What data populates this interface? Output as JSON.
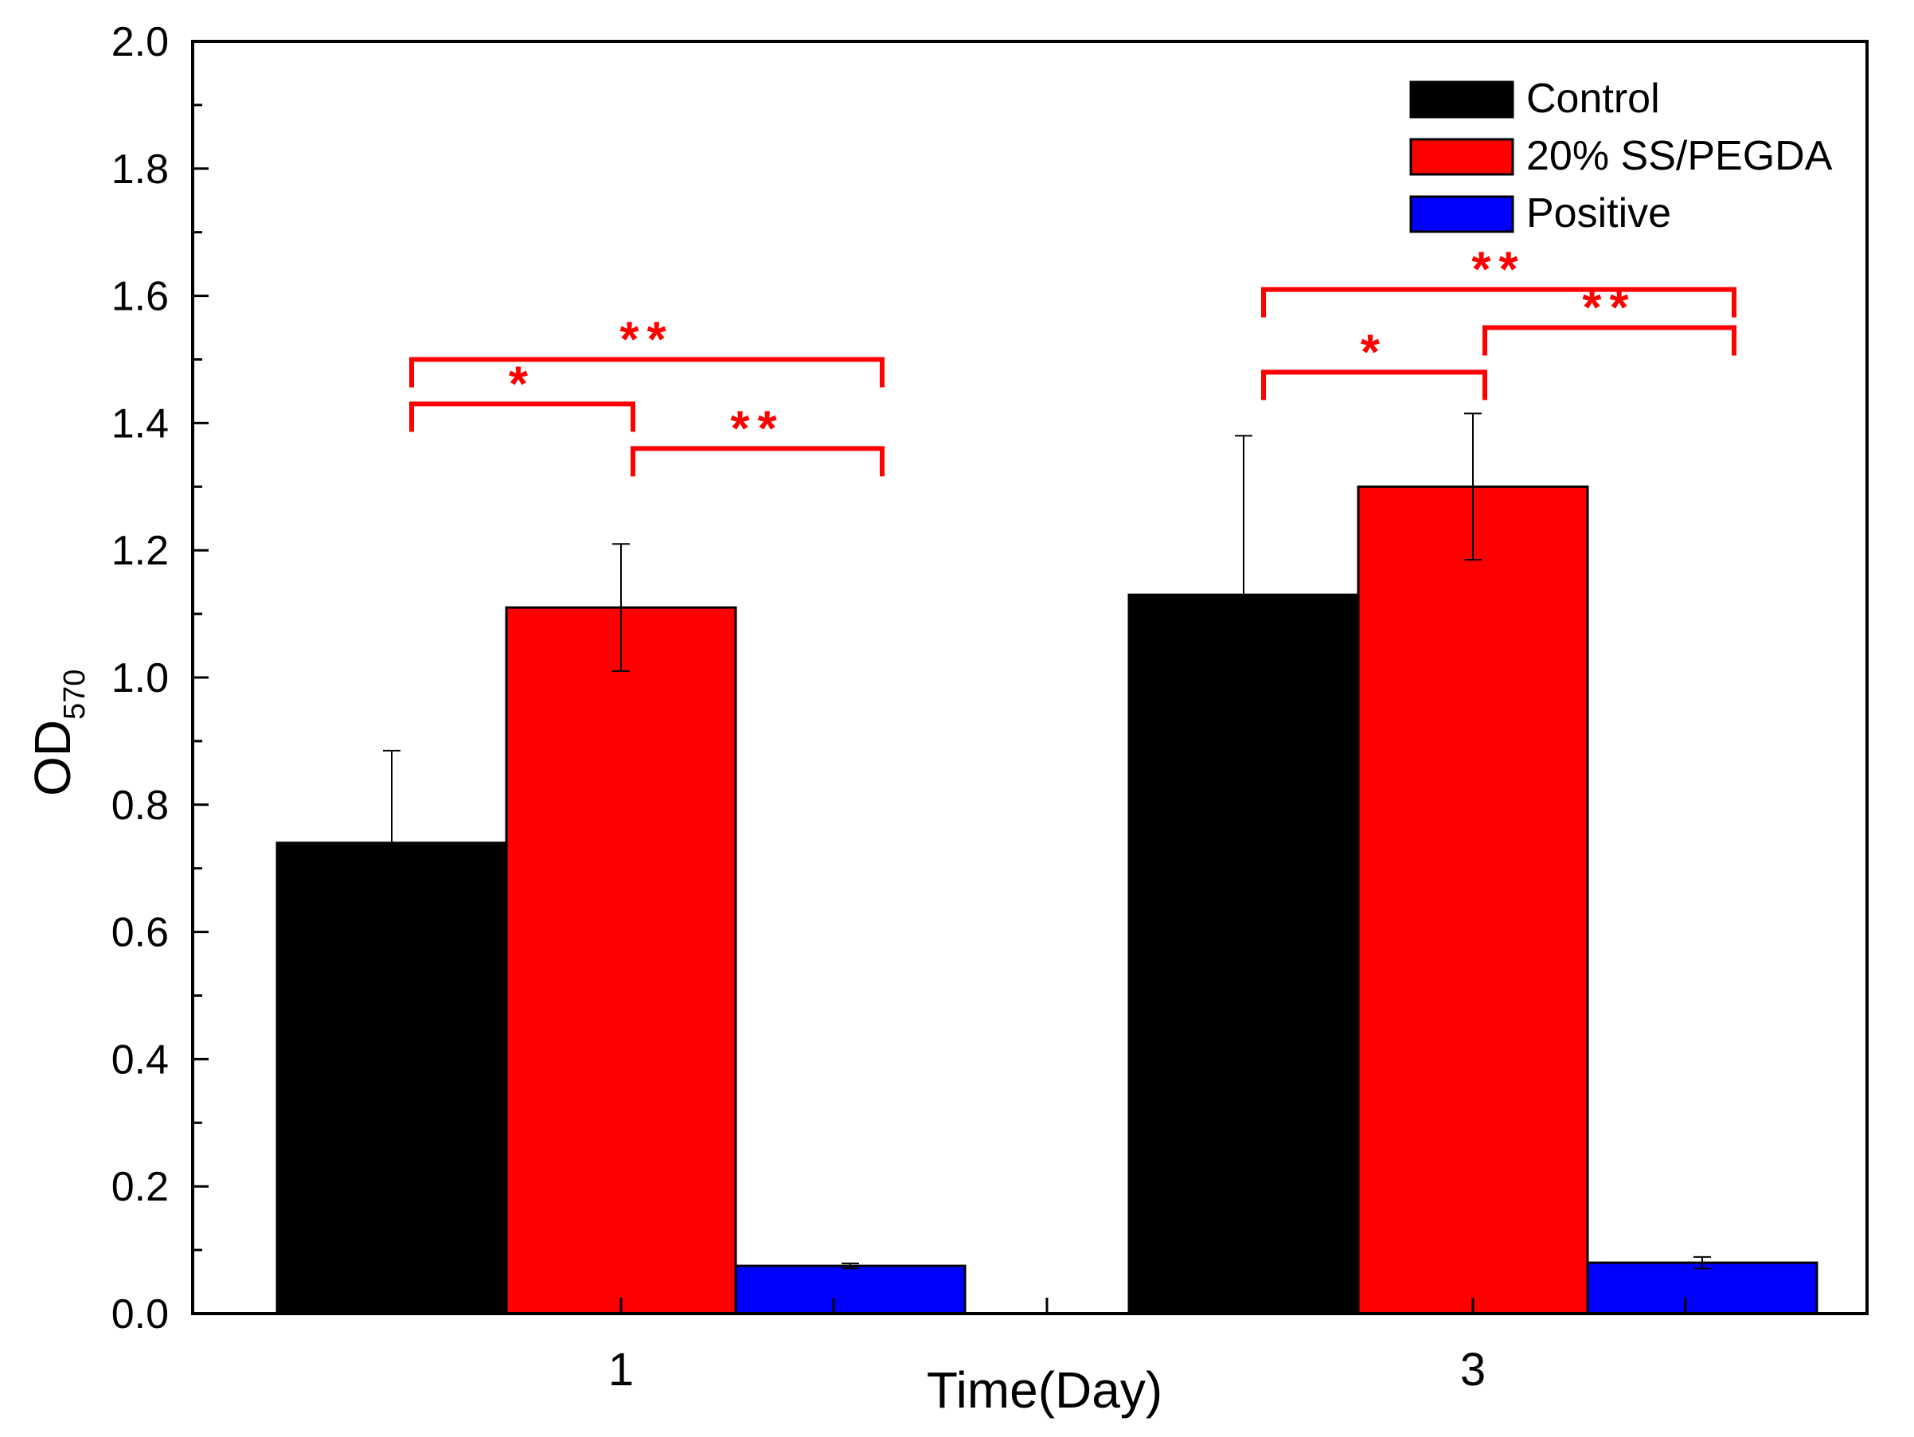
{
  "chart_data": {
    "type": "bar",
    "title": "",
    "xlabel": "Time(Day)",
    "ylabel": {
      "main": "OD",
      "sub": "570"
    },
    "categories": [
      "1",
      "3"
    ],
    "ylim": [
      0,
      2.0
    ],
    "yticks": [
      "0.0",
      "0.2",
      "0.4",
      "0.6",
      "0.8",
      "1.0",
      "1.2",
      "1.4",
      "1.6",
      "1.8",
      "2.0"
    ],
    "grid": false,
    "legend_position": "top-right",
    "series": [
      {
        "name": "Control",
        "color": "#000000",
        "values": [
          0.74,
          1.13
        ],
        "errors": [
          0.145,
          0.25
        ]
      },
      {
        "name": "20% SS/PEGDA",
        "color": "#ff0000",
        "values": [
          1.11,
          1.3
        ],
        "errors": [
          0.1,
          0.115
        ]
      },
      {
        "name": "Positive",
        "color": "#0000ff",
        "values": [
          0.075,
          0.08
        ],
        "errors": [
          0.004,
          0.009
        ]
      }
    ],
    "significance": [
      {
        "category": "1",
        "from_series": 0,
        "to_series": 1,
        "level": 1.43,
        "label": "*"
      },
      {
        "category": "1",
        "from_series": 0,
        "to_series": 2,
        "level": 1.5,
        "label": "**"
      },
      {
        "category": "1",
        "from_series": 1,
        "to_series": 2,
        "level": 1.36,
        "label": "**"
      },
      {
        "category": "3",
        "from_series": 0,
        "to_series": 1,
        "level": 1.48,
        "label": "*"
      },
      {
        "category": "3",
        "from_series": 0,
        "to_series": 2,
        "level": 1.61,
        "label": "**"
      },
      {
        "category": "3",
        "from_series": 1,
        "to_series": 2,
        "level": 1.55,
        "label": "**"
      }
    ],
    "annotation_color": "#ff0000"
  }
}
